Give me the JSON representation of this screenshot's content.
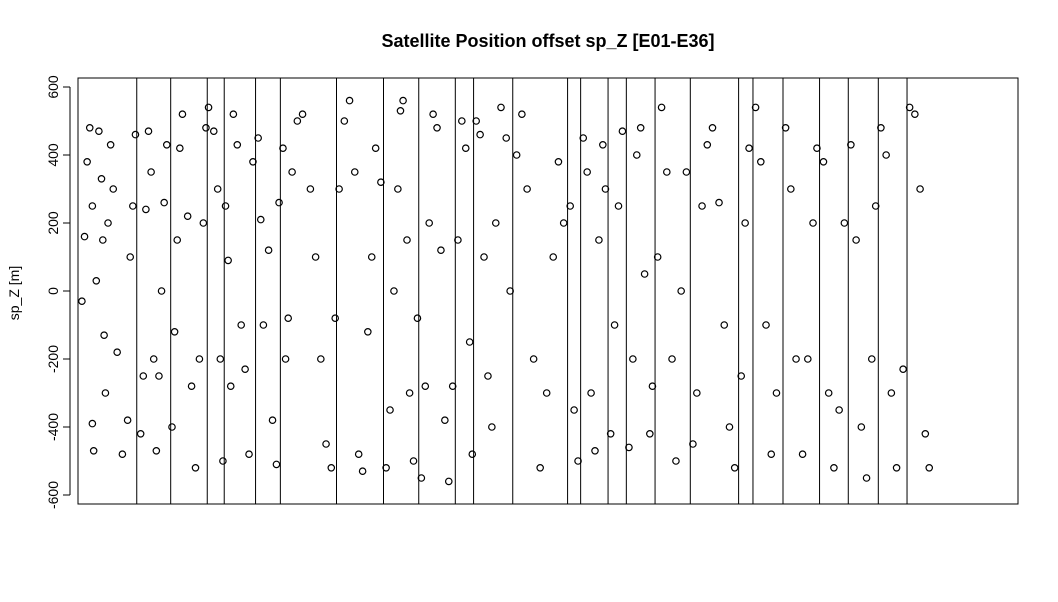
{
  "chart_data": {
    "type": "scatter",
    "title": "Satellite Position offset sp_Z [E01-E36]",
    "xlabel": "",
    "ylabel": "sp_Z [m]",
    "ylim": [
      -620,
      610
    ],
    "yticks": [
      -600,
      -400,
      -200,
      0,
      200,
      400,
      600
    ],
    "ytick_labels": [
      "-600",
      "-400",
      "-200",
      "0",
      "200",
      "400",
      "600"
    ],
    "x_axis_shown": false,
    "grid": false,
    "marker": "open-circle",
    "series_count": 36,
    "x_domain": [
      0,
      36
    ],
    "separators": [
      2.25,
      3.55,
      4.95,
      5.6,
      6.8,
      7.75,
      9.9,
      11.7,
      13.05,
      14.45,
      15.15,
      16.65,
      18.75,
      19.25,
      20.3,
      21.0,
      22.1,
      23.45,
      25.3,
      25.85,
      27.0,
      28.4,
      29.5,
      30.65,
      31.75
    ],
    "points": [
      [
        0.15,
        -30
      ],
      [
        0.25,
        160
      ],
      [
        0.35,
        380
      ],
      [
        0.45,
        480
      ],
      [
        0.55,
        250
      ],
      [
        0.55,
        -390
      ],
      [
        0.6,
        -470
      ],
      [
        0.7,
        30
      ],
      [
        0.8,
        470
      ],
      [
        0.9,
        330
      ],
      [
        0.95,
        150
      ],
      [
        1.0,
        -130
      ],
      [
        1.05,
        -300
      ],
      [
        1.15,
        200
      ],
      [
        1.25,
        430
      ],
      [
        1.35,
        300
      ],
      [
        1.5,
        -180
      ],
      [
        1.7,
        -480
      ],
      [
        1.9,
        -380
      ],
      [
        2.0,
        100
      ],
      [
        2.1,
        250
      ],
      [
        2.2,
        460
      ],
      [
        2.4,
        -420
      ],
      [
        2.5,
        -250
      ],
      [
        2.6,
        240
      ],
      [
        2.7,
        470
      ],
      [
        2.8,
        350
      ],
      [
        2.9,
        -200
      ],
      [
        3.0,
        -470
      ],
      [
        3.1,
        -250
      ],
      [
        3.2,
        0
      ],
      [
        3.3,
        260
      ],
      [
        3.4,
        430
      ],
      [
        3.6,
        -400
      ],
      [
        3.7,
        -120
      ],
      [
        3.8,
        150
      ],
      [
        3.9,
        420
      ],
      [
        4.0,
        520
      ],
      [
        4.2,
        220
      ],
      [
        4.35,
        -280
      ],
      [
        4.5,
        -520
      ],
      [
        4.65,
        -200
      ],
      [
        4.8,
        200
      ],
      [
        4.9,
        480
      ],
      [
        5.0,
        540
      ],
      [
        5.2,
        470
      ],
      [
        5.35,
        300
      ],
      [
        5.45,
        -200
      ],
      [
        5.55,
        -500
      ],
      [
        5.65,
        250
      ],
      [
        5.75,
        90
      ],
      [
        5.85,
        -280
      ],
      [
        5.95,
        520
      ],
      [
        6.1,
        430
      ],
      [
        6.25,
        -100
      ],
      [
        6.4,
        -230
      ],
      [
        6.55,
        -480
      ],
      [
        6.7,
        380
      ],
      [
        6.9,
        450
      ],
      [
        7.0,
        210
      ],
      [
        7.1,
        -100
      ],
      [
        7.3,
        120
      ],
      [
        7.45,
        -380
      ],
      [
        7.6,
        -510
      ],
      [
        7.7,
        260
      ],
      [
        7.85,
        420
      ],
      [
        7.95,
        -200
      ],
      [
        8.05,
        -80
      ],
      [
        8.2,
        350
      ],
      [
        8.4,
        500
      ],
      [
        8.6,
        520
      ],
      [
        8.9,
        300
      ],
      [
        9.1,
        100
      ],
      [
        9.3,
        -200
      ],
      [
        9.5,
        -450
      ],
      [
        9.7,
        -520
      ],
      [
        9.85,
        -80
      ],
      [
        10.0,
        300
      ],
      [
        10.2,
        500
      ],
      [
        10.4,
        560
      ],
      [
        10.6,
        350
      ],
      [
        10.75,
        -480
      ],
      [
        10.9,
        -530
      ],
      [
        11.1,
        -120
      ],
      [
        11.25,
        100
      ],
      [
        11.4,
        420
      ],
      [
        11.6,
        320
      ],
      [
        11.8,
        -520
      ],
      [
        11.95,
        -350
      ],
      [
        12.1,
        0
      ],
      [
        12.25,
        300
      ],
      [
        12.35,
        530
      ],
      [
        12.45,
        560
      ],
      [
        12.6,
        150
      ],
      [
        12.7,
        -300
      ],
      [
        12.85,
        -500
      ],
      [
        13.0,
        -80
      ],
      [
        13.15,
        -550
      ],
      [
        13.3,
        -280
      ],
      [
        13.45,
        200
      ],
      [
        13.6,
        520
      ],
      [
        13.75,
        480
      ],
      [
        13.9,
        120
      ],
      [
        14.05,
        -380
      ],
      [
        14.2,
        -560
      ],
      [
        14.35,
        -280
      ],
      [
        14.55,
        150
      ],
      [
        14.7,
        500
      ],
      [
        14.85,
        420
      ],
      [
        15.0,
        -150
      ],
      [
        15.1,
        -480
      ],
      [
        15.25,
        500
      ],
      [
        15.4,
        460
      ],
      [
        15.55,
        100
      ],
      [
        15.7,
        -250
      ],
      [
        15.85,
        -400
      ],
      [
        16.0,
        200
      ],
      [
        16.2,
        540
      ],
      [
        16.4,
        450
      ],
      [
        16.55,
        0
      ],
      [
        16.8,
        400
      ],
      [
        17.0,
        520
      ],
      [
        17.2,
        300
      ],
      [
        17.45,
        -200
      ],
      [
        17.7,
        -520
      ],
      [
        17.95,
        -300
      ],
      [
        18.2,
        100
      ],
      [
        18.4,
        380
      ],
      [
        18.6,
        200
      ],
      [
        18.85,
        250
      ],
      [
        19.0,
        -350
      ],
      [
        19.15,
        -500
      ],
      [
        19.35,
        450
      ],
      [
        19.5,
        350
      ],
      [
        19.65,
        -300
      ],
      [
        19.8,
        -470
      ],
      [
        19.95,
        150
      ],
      [
        20.1,
        430
      ],
      [
        20.2,
        300
      ],
      [
        20.4,
        -420
      ],
      [
        20.55,
        -100
      ],
      [
        20.7,
        250
      ],
      [
        20.85,
        470
      ],
      [
        21.1,
        -460
      ],
      [
        21.25,
        -200
      ],
      [
        21.4,
        400
      ],
      [
        21.55,
        480
      ],
      [
        21.7,
        50
      ],
      [
        21.9,
        -420
      ],
      [
        22.0,
        -280
      ],
      [
        22.2,
        100
      ],
      [
        22.35,
        540
      ],
      [
        22.55,
        350
      ],
      [
        22.75,
        -200
      ],
      [
        22.9,
        -500
      ],
      [
        23.1,
        0
      ],
      [
        23.3,
        350
      ],
      [
        23.55,
        -450
      ],
      [
        23.7,
        -300
      ],
      [
        23.9,
        250
      ],
      [
        24.1,
        430
      ],
      [
        24.3,
        480
      ],
      [
        24.55,
        260
      ],
      [
        24.75,
        -100
      ],
      [
        24.95,
        -400
      ],
      [
        25.15,
        -520
      ],
      [
        25.4,
        -250
      ],
      [
        25.55,
        200
      ],
      [
        25.7,
        420
      ],
      [
        25.95,
        540
      ],
      [
        26.15,
        380
      ],
      [
        26.35,
        -100
      ],
      [
        26.55,
        -480
      ],
      [
        26.75,
        -300
      ],
      [
        27.1,
        480
      ],
      [
        27.3,
        300
      ],
      [
        27.5,
        -200
      ],
      [
        27.75,
        -480
      ],
      [
        27.95,
        -200
      ],
      [
        28.15,
        200
      ],
      [
        28.3,
        420
      ],
      [
        28.55,
        380
      ],
      [
        28.75,
        -300
      ],
      [
        28.95,
        -520
      ],
      [
        29.15,
        -350
      ],
      [
        29.35,
        200
      ],
      [
        29.6,
        430
      ],
      [
        29.8,
        150
      ],
      [
        30.0,
        -400
      ],
      [
        30.2,
        -550
      ],
      [
        30.4,
        -200
      ],
      [
        30.55,
        250
      ],
      [
        30.75,
        480
      ],
      [
        30.95,
        400
      ],
      [
        31.15,
        -300
      ],
      [
        31.35,
        -520
      ],
      [
        31.6,
        -230
      ],
      [
        31.85,
        540
      ],
      [
        32.05,
        520
      ],
      [
        32.25,
        300
      ],
      [
        32.45,
        -420
      ],
      [
        32.6,
        -520
      ]
    ]
  }
}
